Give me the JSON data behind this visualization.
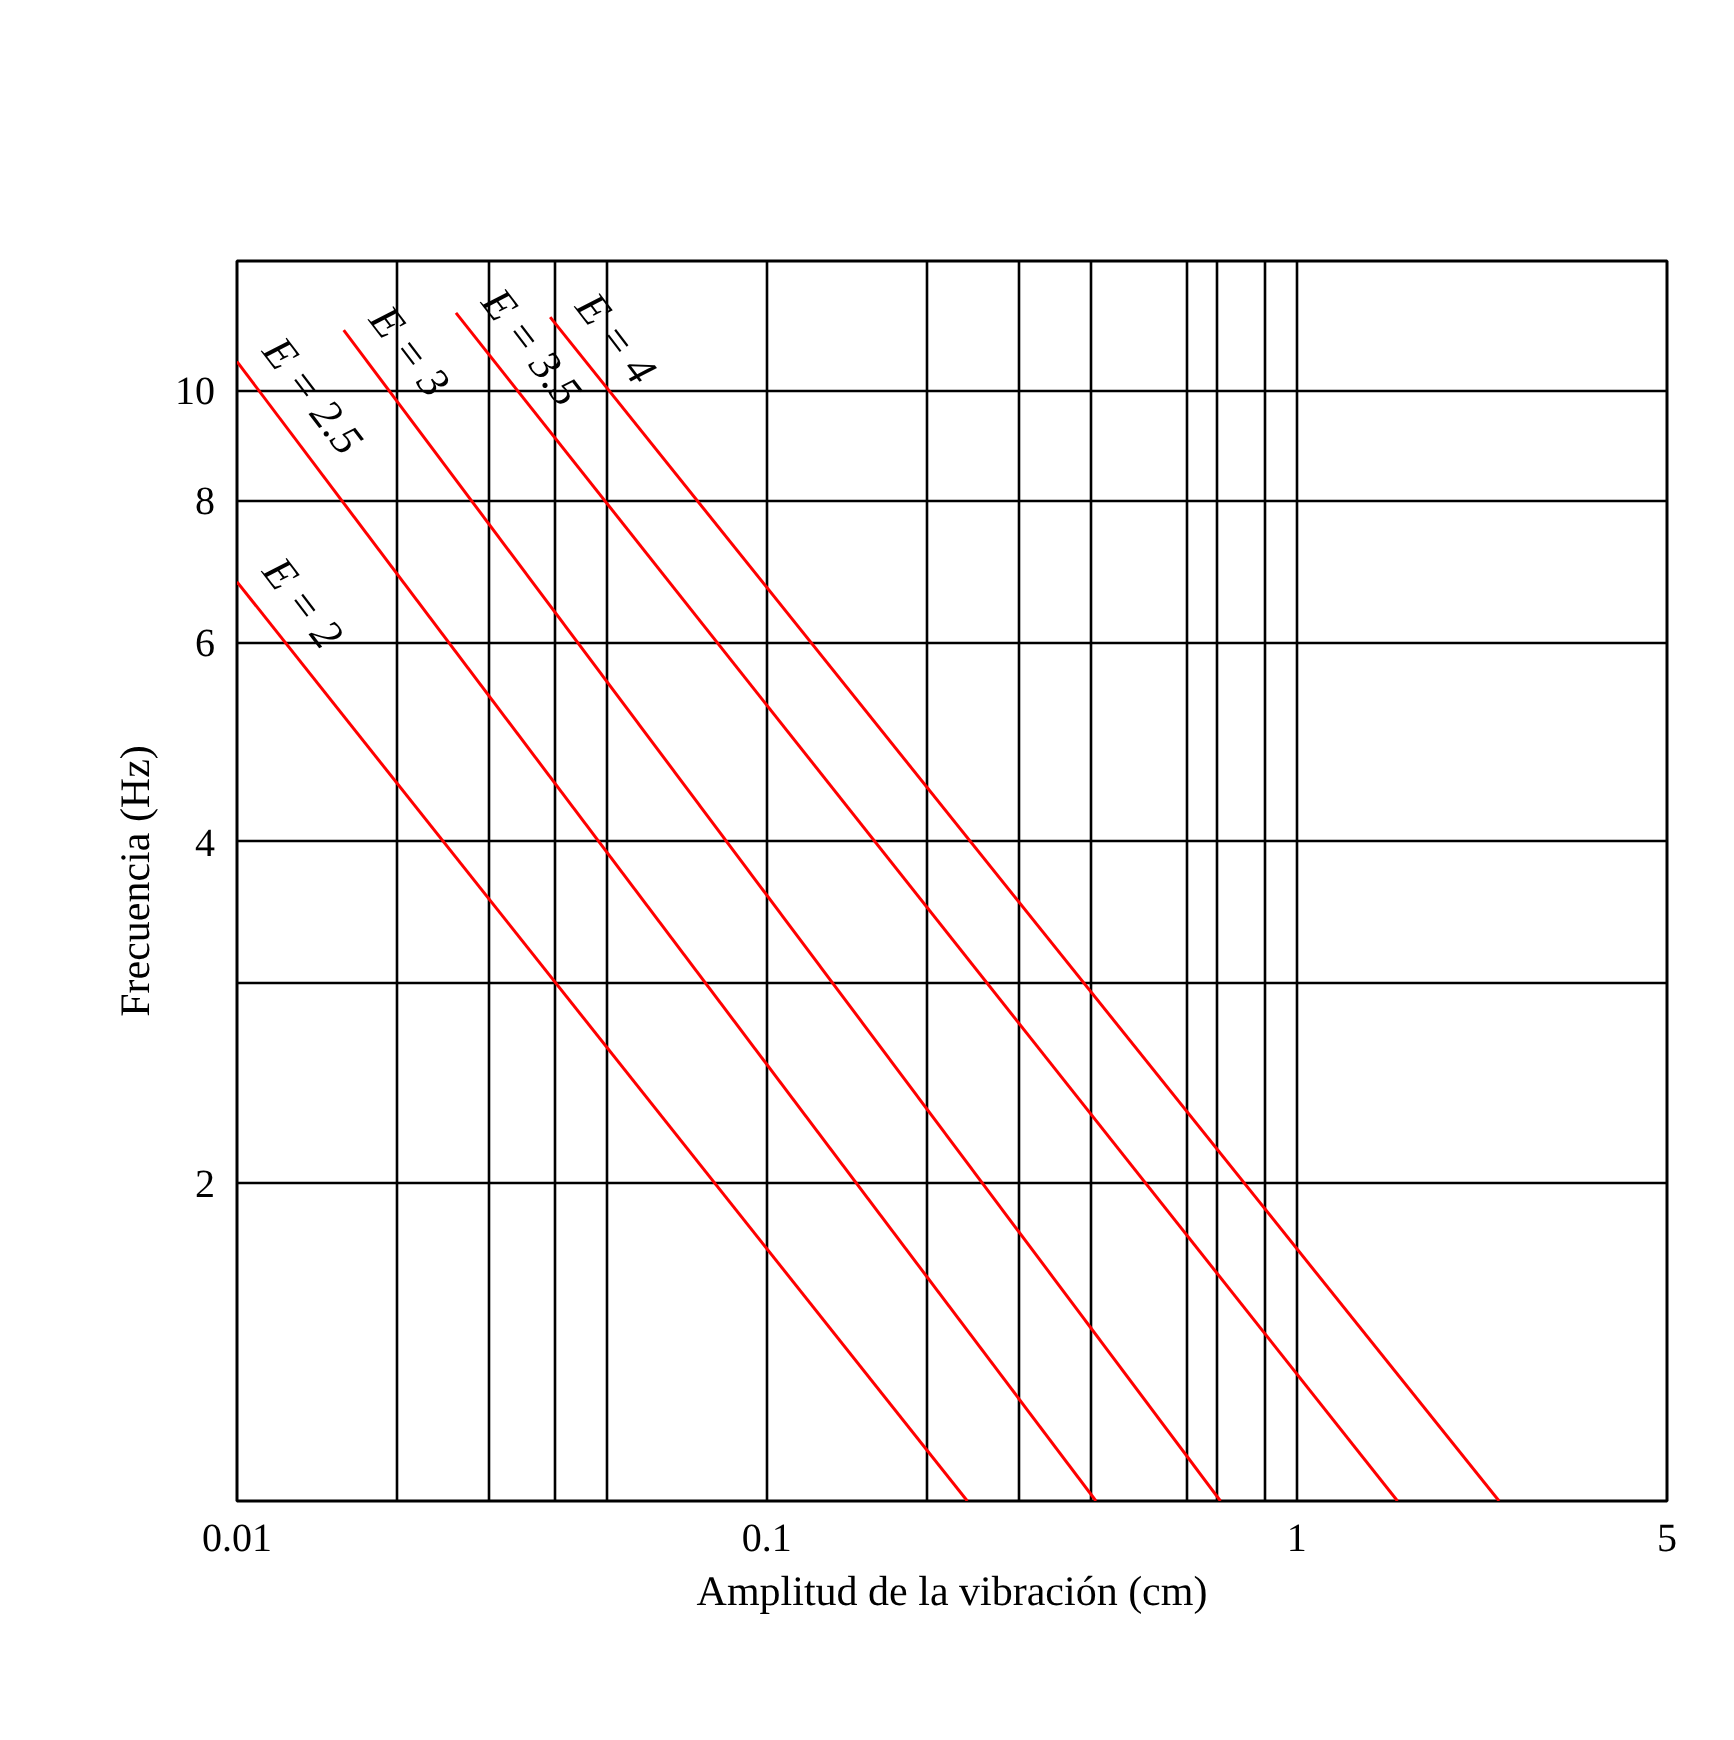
{
  "chart_data": {
    "type": "line",
    "xlabel": "Amplitud de la vibración (cm)",
    "ylabel": "Frecuencia (Hz)",
    "log": "xy",
    "grid": true,
    "xlim": [
      0.01,
      5
    ],
    "ylim": [
      1.05,
      13
    ],
    "xticks": [
      0.01,
      {
        "value": 0.02,
        "label": null
      },
      {
        "value": 0.03,
        "label": null
      },
      {
        "value": 0.04,
        "label": null
      },
      {
        "value": 0.05,
        "label": null
      },
      0.1,
      {
        "value": 0.2,
        "label": null
      },
      {
        "value": 0.3,
        "label": null
      },
      {
        "value": 0.41,
        "label": null
      },
      {
        "value": 0.62,
        "label": null
      },
      {
        "value": 0.71,
        "label": null
      },
      {
        "value": 0.87,
        "label": null
      },
      1,
      5
    ],
    "yticks": [
      {
        "value": 2,
        "label": "2"
      },
      {
        "value": 3,
        "label": null
      },
      {
        "value": 4,
        "label": "4"
      },
      {
        "value": 6,
        "label": "6"
      },
      {
        "value": 8,
        "label": "8"
      },
      {
        "value": 10,
        "label": "10"
      }
    ],
    "series": [
      {
        "name": "E = 2",
        "color": "#ff0000",
        "x": [
          0.01,
          0.239
        ],
        "values": [
          6.78,
          1.05
        ]
      },
      {
        "name": "E = 2.5",
        "color": "#ff0000",
        "x": [
          0.01,
          0.418
        ],
        "values": [
          10.6,
          1.05
        ]
      },
      {
        "name": "E = 3",
        "color": "#ff0000",
        "x": [
          0.0159,
          0.718
        ],
        "values": [
          11.3,
          1.05
        ]
      },
      {
        "name": "E = 3.5",
        "color": "#ff0000",
        "x": [
          0.0259,
          1.55
        ],
        "values": [
          11.7,
          1.05
        ]
      },
      {
        "name": "E = 4",
        "color": "#ff0000",
        "x": [
          0.039,
          2.41
        ],
        "values": [
          11.6,
          1.05
        ]
      }
    ]
  }
}
